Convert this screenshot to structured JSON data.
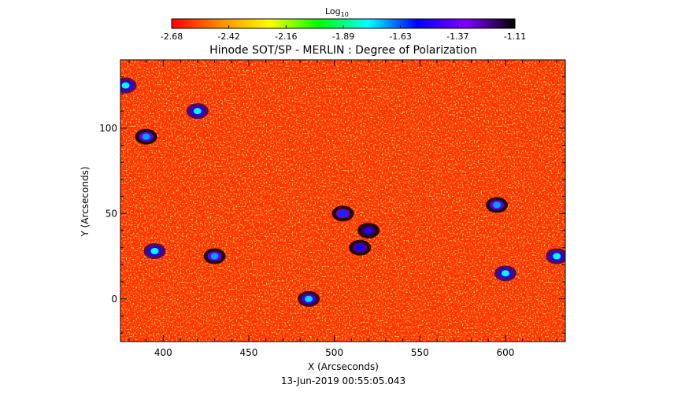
{
  "chart_data": {
    "type": "heatmap",
    "title": "Hinode SOT/SP - MERLIN : Degree of Polarization",
    "xlabel": "X (Arcseconds)",
    "ylabel": "Y (Arcseconds)",
    "date_label": "13-Jun-2019 00:55:05.043",
    "xlim": [
      375,
      635
    ],
    "ylim": [
      -25,
      140
    ],
    "x_ticks": [
      400,
      450,
      500,
      550,
      600
    ],
    "y_ticks": [
      0,
      50,
      100
    ],
    "colorbar": {
      "title": "Log",
      "title_sub": "10",
      "range": [
        -2.68,
        -1.11
      ],
      "ticks": [
        "-2.68",
        "-2.42",
        "-2.16",
        "-1.89",
        "-1.63",
        "-1.37",
        "-1.11"
      ],
      "colors": [
        "#ff0000",
        "#ff8c00",
        "#ffff00",
        "#00ff00",
        "#00ffff",
        "#0000ff",
        "#8000ff",
        "#000000"
      ]
    },
    "background_level": -2.6,
    "features": [
      {
        "x": 520,
        "y": 40,
        "level": -1.5
      },
      {
        "x": 505,
        "y": 50,
        "level": -1.6
      },
      {
        "x": 515,
        "y": 30,
        "level": -1.55
      },
      {
        "x": 430,
        "y": 25,
        "level": -1.7
      },
      {
        "x": 395,
        "y": 28,
        "level": -1.8
      },
      {
        "x": 595,
        "y": 55,
        "level": -1.7
      },
      {
        "x": 390,
        "y": 95,
        "level": -1.7
      },
      {
        "x": 420,
        "y": 110,
        "level": -1.8
      },
      {
        "x": 378,
        "y": 125,
        "level": -1.8
      },
      {
        "x": 485,
        "y": 0,
        "level": -1.75
      },
      {
        "x": 600,
        "y": 15,
        "level": -1.8
      },
      {
        "x": 630,
        "y": 25,
        "level": -1.8
      }
    ]
  }
}
